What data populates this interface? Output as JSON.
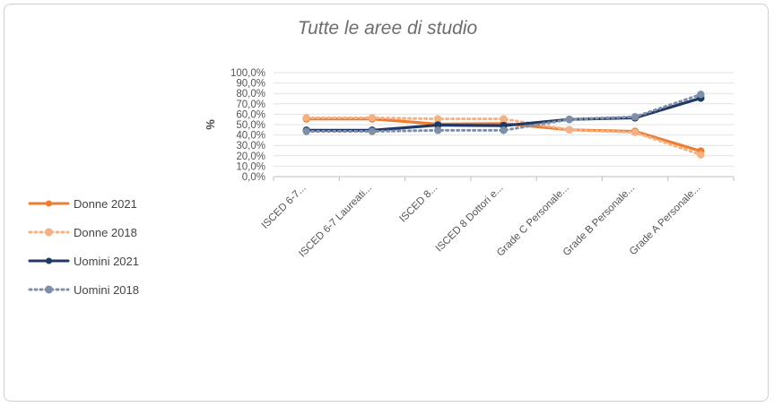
{
  "chart_data": {
    "type": "line",
    "title": "Tutte le aree di studio",
    "ylabel": "%",
    "xlabel": "",
    "ylim": [
      0,
      100
    ],
    "y_ticks": [
      "0,0%",
      "10,0%",
      "20,0%",
      "30,0%",
      "40,0%",
      "50,0%",
      "60,0%",
      "70,0%",
      "80,0%",
      "90,0%",
      "100,0%"
    ],
    "categories": [
      "ISCED 6-7...",
      "ISCED 6-7 Laureati...",
      "ISCED 8...",
      "ISCED 8 Dottori e...",
      "Grade C Personale...",
      "Grade B Personale...",
      "Grade A Personale..."
    ],
    "grid": true,
    "legend_position": "left",
    "series": [
      {
        "name": "Donne 2021",
        "values": [
          55.5,
          55.5,
          50.5,
          51.0,
          45.0,
          43.5,
          24.5
        ],
        "color": "#ed7d31",
        "dash": "solid"
      },
      {
        "name": "Donne 2018",
        "values": [
          56.5,
          56.5,
          55.5,
          55.5,
          45.0,
          42.5,
          21.0
        ],
        "color": "#f4b183",
        "dash": "dotted"
      },
      {
        "name": "Uomini 2021",
        "values": [
          44.5,
          44.5,
          49.5,
          49.0,
          55.0,
          56.5,
          75.5
        ],
        "color": "#1f3864",
        "dash": "solid"
      },
      {
        "name": "Uomini 2018",
        "values": [
          43.5,
          43.5,
          44.5,
          44.5,
          55.0,
          57.5,
          79.0
        ],
        "color": "#7f8fa9",
        "dash": "dotted"
      }
    ]
  }
}
